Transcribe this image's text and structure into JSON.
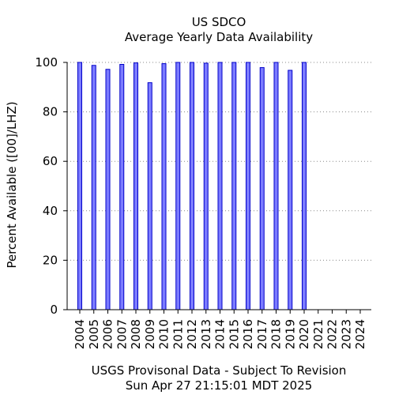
{
  "chart_data": {
    "type": "bar",
    "title": "US SDCO",
    "subtitle": "Average Yearly Data Availability",
    "ylabel": "Percent Available ([00]/LHZ)",
    "xlabel": "",
    "footer_line1": "USGS Provisonal Data - Subject To Revision",
    "footer_line2": "Sun Apr 27 21:15:01 MDT 2025",
    "ylim": [
      0,
      100
    ],
    "yticks": [
      0,
      20,
      40,
      60,
      80,
      100
    ],
    "grid": "horizontal dotted",
    "categories": [
      "2004",
      "2005",
      "2006",
      "2007",
      "2008",
      "2009",
      "2010",
      "2011",
      "2012",
      "2013",
      "2014",
      "2015",
      "2016",
      "2017",
      "2018",
      "2019",
      "2020",
      "2021",
      "2022",
      "2023",
      "2024"
    ],
    "values": [
      100,
      98.8,
      97.2,
      99.2,
      99.8,
      91.8,
      99.5,
      100,
      100,
      99.7,
      100,
      100,
      100,
      97.9,
      100,
      96.8,
      100,
      null,
      null,
      null,
      null
    ],
    "colors": {
      "bar_fill": "#7b7bff",
      "bar_stroke": "#0000c8",
      "grid": "#888888"
    }
  }
}
